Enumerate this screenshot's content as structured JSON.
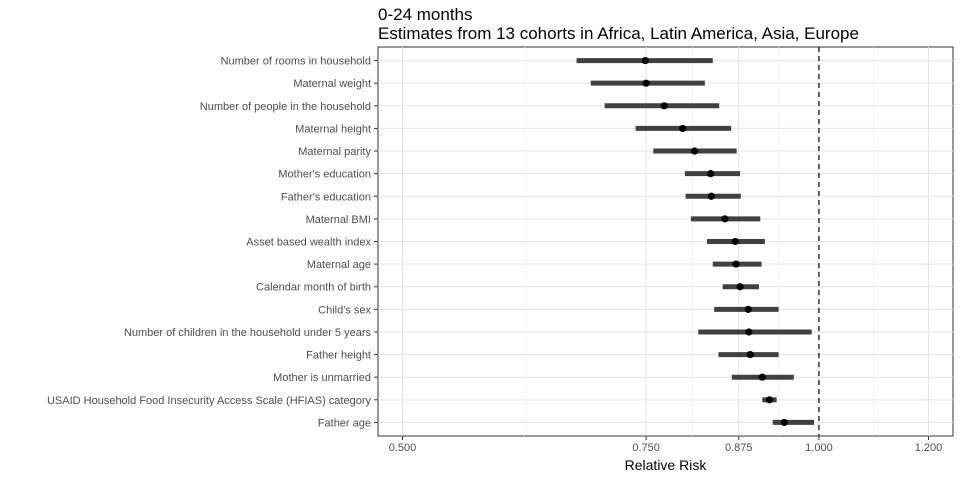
{
  "chart_data": {
    "type": "forest",
    "title": "0-24 months",
    "subtitle": "Estimates from 13 cohorts in Africa, Latin America, Asia, Europe",
    "xlabel": "Relative Risk",
    "ylabel": "",
    "x_scale": "log",
    "xlim": [
      0.48,
      1.25
    ],
    "x_ticks": [
      0.5,
      0.75,
      0.875,
      1.0,
      1.2
    ],
    "x_tick_labels": [
      "0.500",
      "0.750",
      "0.875",
      "1.000",
      "1.200"
    ],
    "reference_line": 1.0,
    "grid": true,
    "categories": [
      "Number of rooms in household",
      "Maternal weight",
      "Number of people in the household",
      "Maternal height",
      "Maternal parity",
      "Mother's education",
      "Father's education",
      "Maternal BMI",
      "Asset based wealth index",
      "Maternal age",
      "Calendar month of birth",
      "Child's sex",
      "Number of children in the household under 5 years",
      "Father height",
      "Mother is unmarried",
      "USAID Household Food Insecurity Access Scale (HFIAS) category",
      "Father age"
    ],
    "estimates": [
      0.749,
      0.75,
      0.773,
      0.797,
      0.813,
      0.835,
      0.836,
      0.855,
      0.87,
      0.871,
      0.877,
      0.889,
      0.89,
      0.892,
      0.91,
      0.921,
      0.944
    ],
    "lower": [
      0.668,
      0.684,
      0.7,
      0.737,
      0.759,
      0.8,
      0.801,
      0.808,
      0.83,
      0.838,
      0.852,
      0.84,
      0.818,
      0.846,
      0.865,
      0.91,
      0.926
    ],
    "upper": [
      0.838,
      0.827,
      0.847,
      0.864,
      0.872,
      0.877,
      0.878,
      0.907,
      0.914,
      0.909,
      0.905,
      0.935,
      0.988,
      0.935,
      0.959,
      0.932,
      0.992
    ]
  }
}
